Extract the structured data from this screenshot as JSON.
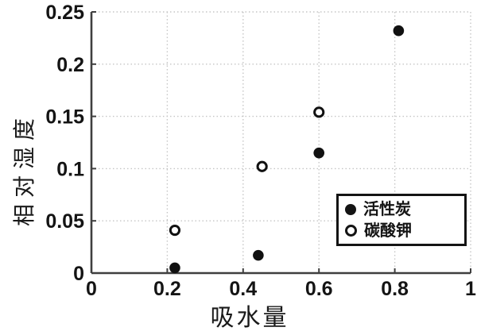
{
  "figure": {
    "background": "#ffffff"
  },
  "colors": {
    "axis": "#3f3f3f",
    "grid": "#c6c6c6",
    "marker": "#111111",
    "text": "#141414"
  },
  "chart_data": {
    "type": "scatter",
    "title": "",
    "xlabel": "吸水量",
    "ylabel": "相对湿度",
    "xlim": [
      0,
      1
    ],
    "ylim": [
      0,
      0.25
    ],
    "grid": "dotted",
    "legend_position": "inside-lower-right",
    "x_ticks": {
      "values": [
        0,
        0.2,
        0.4,
        0.6,
        0.8,
        1
      ],
      "labels": [
        "0",
        "0.2",
        "0.4",
        "0.6",
        "0.8",
        "1"
      ]
    },
    "y_ticks": {
      "values": [
        0,
        0.05,
        0.1,
        0.15,
        0.2,
        0.25
      ],
      "labels": [
        "0",
        "0.05",
        "0.1",
        "0.15",
        "0.2",
        "0.25"
      ]
    },
    "series": [
      {
        "name": "活性炭",
        "marker": "filled-circle",
        "color": "#111111",
        "points": [
          [
            0.22,
            0.005
          ],
          [
            0.44,
            0.017
          ],
          [
            0.6,
            0.115
          ],
          [
            0.81,
            0.232
          ]
        ]
      },
      {
        "name": "碳酸钾",
        "marker": "open-circle",
        "color": "#111111",
        "points": [
          [
            0.22,
            0.041
          ],
          [
            0.45,
            0.102
          ],
          [
            0.6,
            0.154
          ]
        ]
      }
    ]
  },
  "legend": {
    "items": [
      {
        "label": "活性炭",
        "marker": "filled-circle"
      },
      {
        "label": "碳酸钾",
        "marker": "open-circle"
      }
    ]
  }
}
